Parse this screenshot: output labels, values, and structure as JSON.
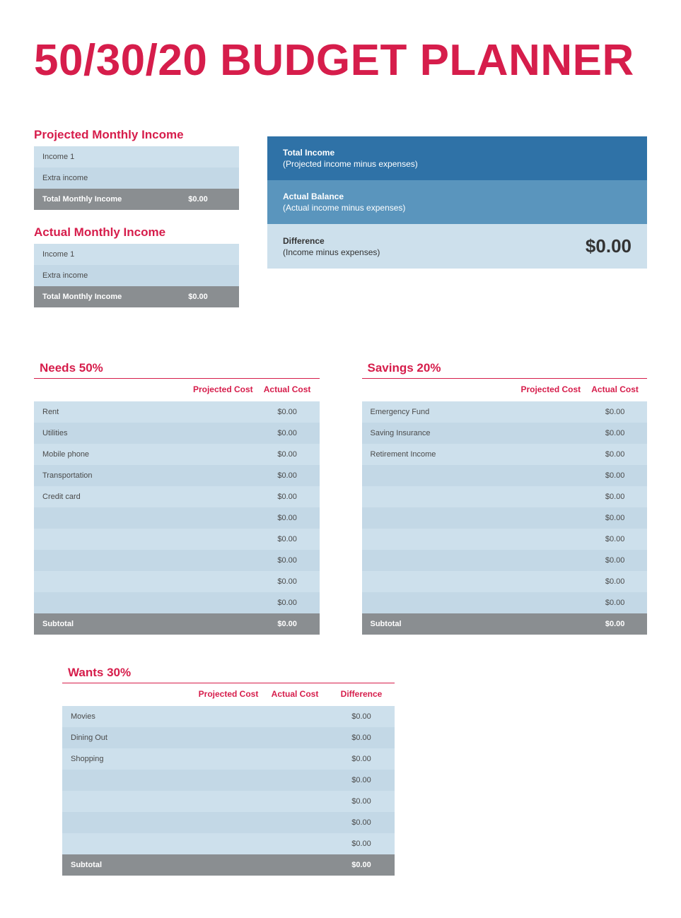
{
  "title": "50/30/20 BUDGET PLANNER",
  "colors": {
    "accent": "#d61d4b",
    "lightRow1": "#cde0ec",
    "lightRow2": "#c3d8e6",
    "totalRow": "#8a8e91",
    "summaryDark": "#2f72a7",
    "summaryMed": "#5a95bd",
    "summaryLight": "#cde0ec"
  },
  "projected": {
    "title": "Projected Monthly Income",
    "rows": [
      {
        "label": "Income 1",
        "value": ""
      },
      {
        "label": "Extra income",
        "value": ""
      }
    ],
    "totalLabel": "Total Monthly Income",
    "totalValue": "$0.00"
  },
  "actual": {
    "title": "Actual Monthly Income",
    "rows": [
      {
        "label": "Income 1",
        "value": ""
      },
      {
        "label": "Extra income",
        "value": ""
      }
    ],
    "totalLabel": "Total Monthly Income",
    "totalValue": "$0.00"
  },
  "summary": {
    "rows": [
      {
        "line1": "Total Income",
        "line2": "(Projected income minus expenses)",
        "value": ""
      },
      {
        "line1": "Actual Balance",
        "line2": "(Actual income minus expenses)",
        "value": ""
      },
      {
        "line1": "Difference",
        "line2": "(Income minus expenses)",
        "value": "$0.00"
      }
    ]
  },
  "headers": {
    "projected": "Projected Cost",
    "actual": "Actual Cost",
    "difference": "Difference",
    "subtotal": "Subtotal"
  },
  "needs": {
    "title": "Needs 50%",
    "rows": [
      {
        "label": "Rent",
        "proj": "",
        "act": "$0.00"
      },
      {
        "label": "Utilities",
        "proj": "",
        "act": "$0.00"
      },
      {
        "label": "Mobile phone",
        "proj": "",
        "act": "$0.00"
      },
      {
        "label": "Transportation",
        "proj": "",
        "act": "$0.00"
      },
      {
        "label": "Credit card",
        "proj": "",
        "act": "$0.00"
      },
      {
        "label": "",
        "proj": "",
        "act": "$0.00"
      },
      {
        "label": "",
        "proj": "",
        "act": "$0.00"
      },
      {
        "label": "",
        "proj": "",
        "act": "$0.00"
      },
      {
        "label": "",
        "proj": "",
        "act": "$0.00"
      },
      {
        "label": "",
        "proj": "",
        "act": "$0.00"
      }
    ],
    "subtotal": {
      "proj": "",
      "act": "$0.00"
    }
  },
  "savings": {
    "title": "Savings 20%",
    "rows": [
      {
        "label": "Emergency Fund",
        "proj": "",
        "act": "$0.00"
      },
      {
        "label": "Saving Insurance",
        "proj": "",
        "act": "$0.00"
      },
      {
        "label": "Retirement Income",
        "proj": "",
        "act": "$0.00"
      },
      {
        "label": "",
        "proj": "",
        "act": "$0.00"
      },
      {
        "label": "",
        "proj": "",
        "act": "$0.00"
      },
      {
        "label": "",
        "proj": "",
        "act": "$0.00"
      },
      {
        "label": "",
        "proj": "",
        "act": "$0.00"
      },
      {
        "label": "",
        "proj": "",
        "act": "$0.00"
      },
      {
        "label": "",
        "proj": "",
        "act": "$0.00"
      },
      {
        "label": "",
        "proj": "",
        "act": "$0.00"
      }
    ],
    "subtotal": {
      "proj": "",
      "act": "$0.00"
    }
  },
  "wants": {
    "title": "Wants 30%",
    "rows": [
      {
        "label": "Movies",
        "proj": "",
        "act": "",
        "diff": "$0.00"
      },
      {
        "label": "Dining Out",
        "proj": "",
        "act": "",
        "diff": "$0.00"
      },
      {
        "label": "Shopping",
        "proj": "",
        "act": "",
        "diff": "$0.00"
      },
      {
        "label": "",
        "proj": "",
        "act": "",
        "diff": "$0.00"
      },
      {
        "label": "",
        "proj": "",
        "act": "",
        "diff": "$0.00"
      },
      {
        "label": "",
        "proj": "",
        "act": "",
        "diff": "$0.00"
      },
      {
        "label": "",
        "proj": "",
        "act": "",
        "diff": "$0.00"
      }
    ],
    "subtotal": {
      "proj": "",
      "act": "",
      "diff": "$0.00"
    }
  }
}
